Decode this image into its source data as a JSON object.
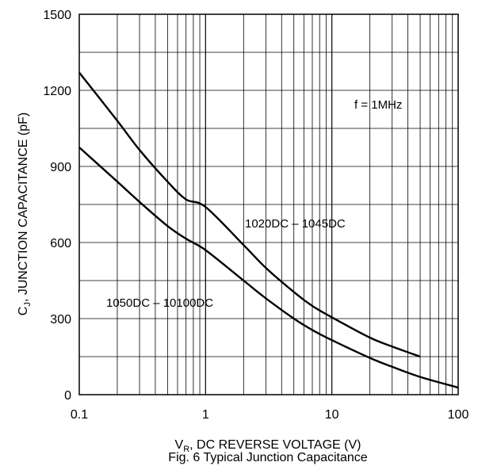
{
  "chart_data": {
    "type": "line",
    "title": "",
    "caption": "Fig. 6 Typical Junction Capacitance",
    "xlabel": {
      "prefix": "V",
      "sub": "R",
      "rest": ", DC REVERSE VOLTAGE (V)"
    },
    "ylabel": {
      "prefix": "C",
      "sub": "J",
      "rest": ", JUNCTION CAPACITANCE (pF)"
    },
    "xscale": "log",
    "xlim": [
      0.1,
      100
    ],
    "ylim": [
      0,
      1500
    ],
    "xticks": [
      0.1,
      1,
      10,
      100
    ],
    "xtick_labels": [
      "0.1",
      "1",
      "10",
      "100"
    ],
    "yticks": [
      0,
      300,
      600,
      900,
      1200,
      1500
    ],
    "ytick_labels": [
      "0",
      "300",
      "600",
      "900",
      "1200",
      "1500"
    ],
    "grid": true,
    "annotation": "f = 1MHz",
    "series": [
      {
        "name": "1020DC – 1045DC",
        "x": [
          0.1,
          0.2,
          0.3,
          0.5,
          0.7,
          1,
          2,
          3,
          5,
          7,
          10,
          20,
          30,
          50
        ],
        "y": [
          1270,
          1080,
          965,
          840,
          770,
          740,
          590,
          500,
          405,
          350,
          305,
          225,
          190,
          150
        ]
      },
      {
        "name": "1050DC – 10100DC",
        "x": [
          0.1,
          0.2,
          0.3,
          0.5,
          0.7,
          1,
          2,
          3,
          5,
          7,
          10,
          20,
          30,
          50,
          100
        ],
        "y": [
          975,
          840,
          760,
          665,
          615,
          570,
          450,
          380,
          300,
          255,
          215,
          145,
          110,
          70,
          28
        ]
      }
    ]
  }
}
